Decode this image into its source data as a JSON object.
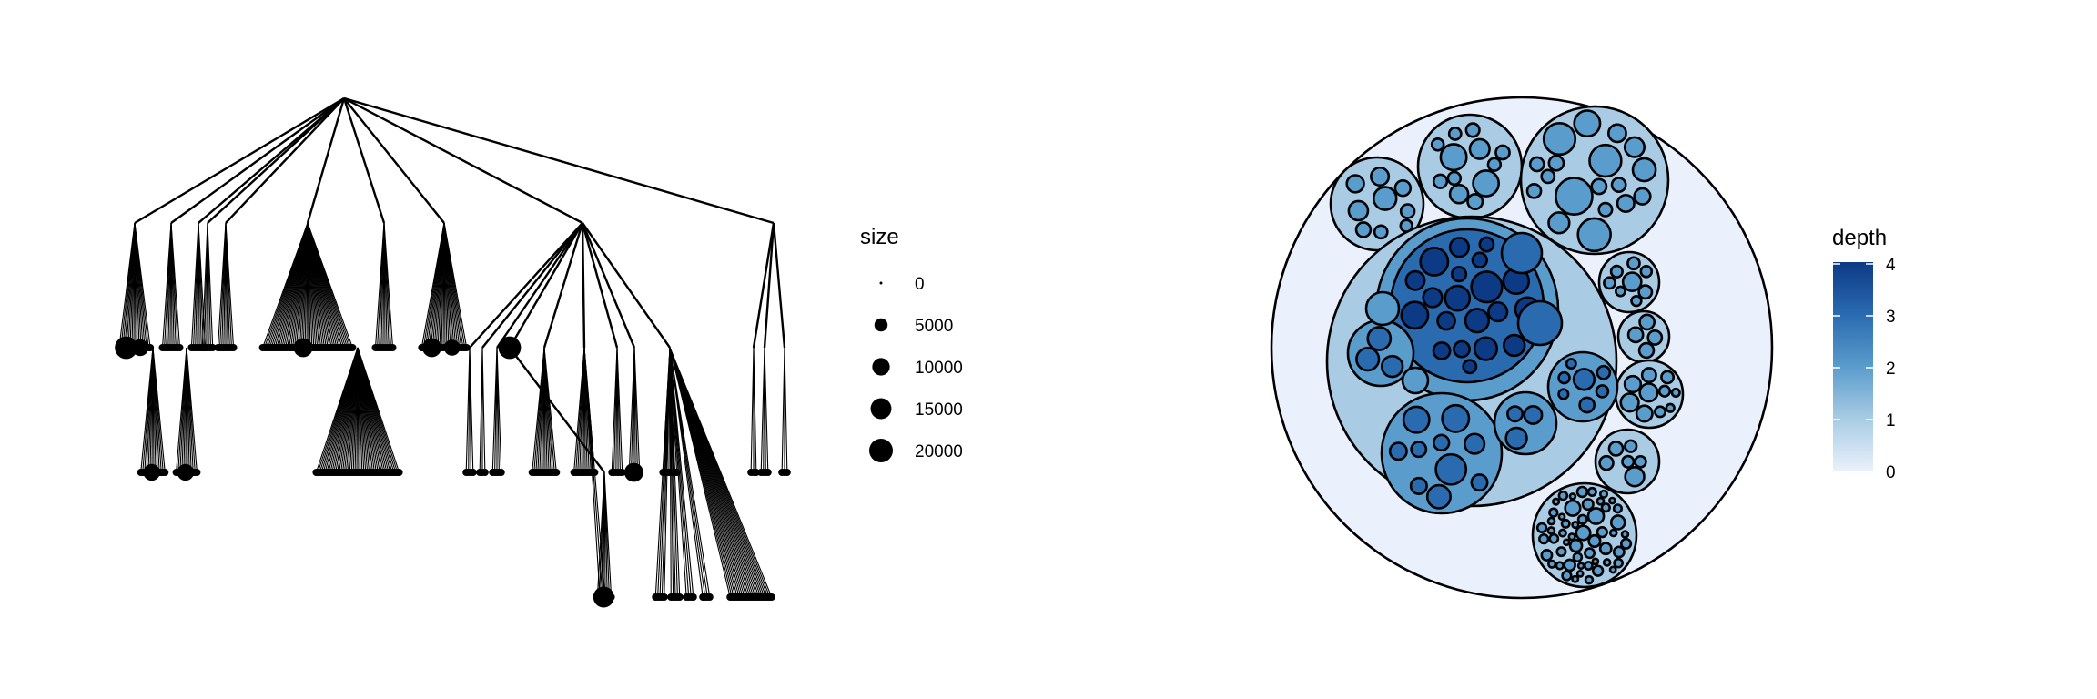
{
  "left_panel": {
    "legend": {
      "title": "size",
      "entries": [
        {
          "label": "0",
          "size": 0
        },
        {
          "label": "5000",
          "size": 5000
        },
        {
          "label": "10000",
          "size": 10000
        },
        {
          "label": "15000",
          "size": 15000
        },
        {
          "label": "20000",
          "size": 20000
        }
      ]
    },
    "tree": {
      "children": [
        {
          "fan": 18,
          "sizes": [
            18000,
            9000
          ]
        },
        {
          "fan": 10,
          "sub": [
            {
              "fan": 14,
              "sizes": [
                9000
              ]
            }
          ]
        },
        {
          "fan": 8,
          "sub": [
            {
              "fan": 12,
              "sizes": [
                9000
              ]
            }
          ]
        },
        {
          "fan": 6
        },
        {
          "fan": 9
        },
        {
          "fan": 52,
          "sizes": [
            12000
          ],
          "sub": [
            {
              "fan": 48
            }
          ]
        },
        {
          "fan": 10
        },
        {
          "fan": 26,
          "sizes": [
            12000,
            8000
          ]
        },
        {
          "sub": [
            {
              "fan": 4
            },
            {
              "fan": 3
            },
            {
              "fan": 5
            },
            {
              "sizes": [
                18000
              ],
              "sub": [
                {
                  "fan": 8,
                  "sizes": [
                    15000
                  ]
                }
              ]
            },
            {
              "fan": 14
            },
            {
              "fan": 12,
              "sub": [
                {
                  "fan": 3
                }
              ]
            },
            {
              "fan": 6
            },
            {
              "fan": 6,
              "sizes": [
                12000
              ]
            },
            {
              "fan": 8,
              "sub": [
                {
                  "fan": 5
                },
                {
                  "fan": 5
                },
                {
                  "fan": 4
                },
                {
                  "fan": 4
                },
                {
                  "fan": 24
                }
              ]
            }
          ]
        },
        {
          "sub": [
            {
              "fan": 3
            },
            {
              "fan": 4
            },
            {
              "fan": 3
            }
          ]
        }
      ]
    }
  },
  "right_panel": {
    "legend": {
      "title": "depth",
      "min": 0,
      "max": 4,
      "ticks": [
        "4",
        "3",
        "2",
        "1",
        "0"
      ]
    },
    "depth_colors": [
      "#eaf1fc",
      "#a9cce4",
      "#5a9ccc",
      "#2a6bb0",
      "#0c3a85"
    ]
  }
}
